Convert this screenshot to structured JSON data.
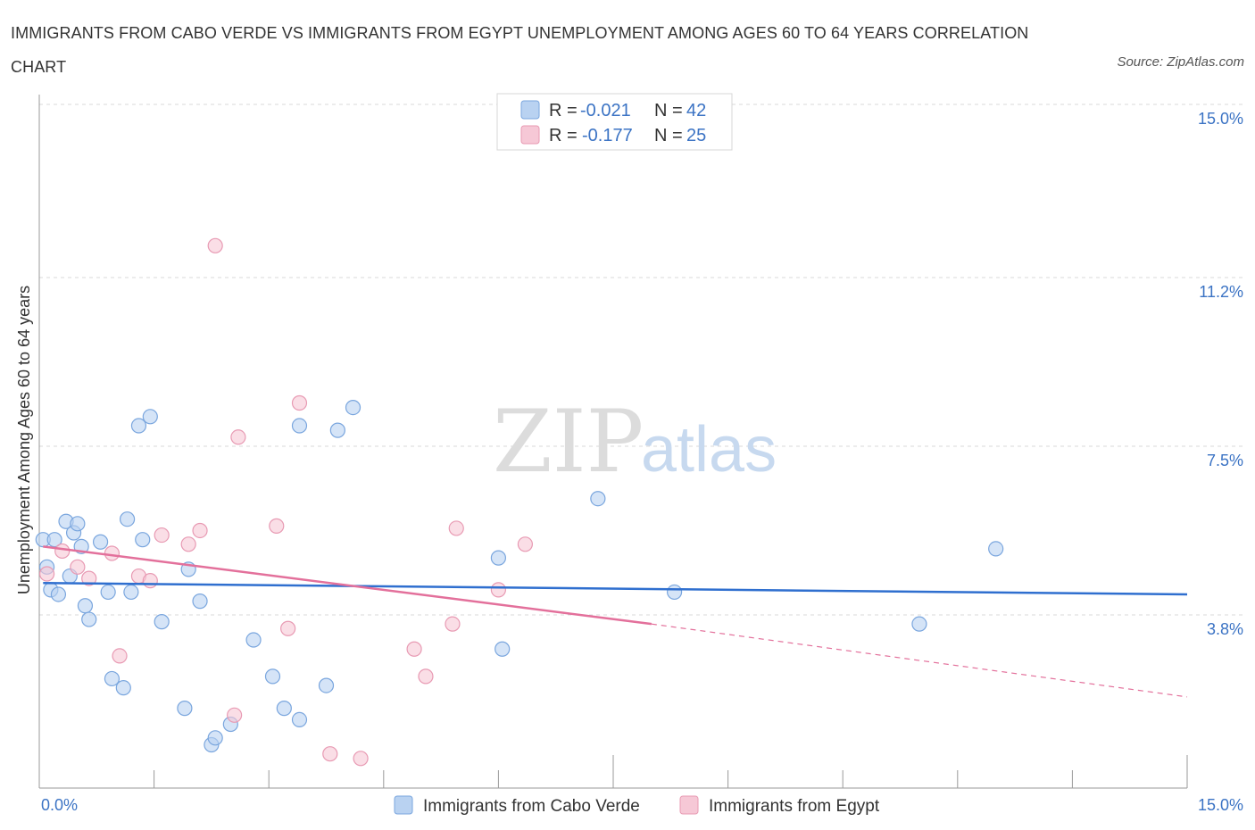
{
  "title": "IMMIGRANTS FROM CABO VERDE VS IMMIGRANTS FROM EGYPT UNEMPLOYMENT AMONG AGES 60 TO 64 YEARS CORRELATION CHART",
  "source": "Source: ZipAtlas.com",
  "watermark": {
    "zip": "ZIP",
    "atlas": "atlas"
  },
  "colors": {
    "blue_fill": "#b9d2f1",
    "blue_stroke": "#7aa6de",
    "blue_line": "#2f6fcf",
    "pink_fill": "#f6c8d6",
    "pink_stroke": "#e89ab3",
    "pink_line": "#e3709b",
    "grid": "#d8d8d8",
    "axis_text": "#3b73c4"
  },
  "legend": {
    "rows": [
      {
        "r_label": "R =",
        "r_value": "-0.021",
        "n_label": "N =",
        "n_value": "42"
      },
      {
        "r_label": "R =",
        "r_value": "-0.177",
        "n_label": "N =",
        "n_value": "25"
      }
    ]
  },
  "chart_data": {
    "type": "scatter",
    "xlabel": "",
    "ylabel": "Unemployment Among Ages 60 to 64 years",
    "xlim": [
      0,
      15
    ],
    "ylim": [
      0,
      15
    ],
    "x_tick_labels": [
      "0.0%",
      "15.0%"
    ],
    "y_ticks": [
      {
        "value": 3.8,
        "label": "3.8%"
      },
      {
        "value": 7.5,
        "label": "7.5%"
      },
      {
        "value": 11.2,
        "label": "11.2%"
      },
      {
        "value": 15.0,
        "label": "15.0%"
      }
    ],
    "series": [
      {
        "name": "Immigrants from Cabo Verde",
        "color": "blue",
        "points": [
          [
            0.05,
            5.45
          ],
          [
            0.1,
            4.85
          ],
          [
            0.15,
            4.35
          ],
          [
            0.2,
            5.45
          ],
          [
            0.25,
            4.25
          ],
          [
            0.35,
            5.85
          ],
          [
            0.4,
            4.65
          ],
          [
            0.45,
            5.6
          ],
          [
            0.5,
            5.8
          ],
          [
            0.55,
            5.3
          ],
          [
            0.6,
            4.0
          ],
          [
            0.65,
            3.7
          ],
          [
            0.8,
            5.4
          ],
          [
            0.9,
            4.3
          ],
          [
            0.95,
            2.4
          ],
          [
            1.1,
            2.2
          ],
          [
            1.15,
            5.9
          ],
          [
            1.2,
            4.3
          ],
          [
            1.3,
            7.95
          ],
          [
            1.35,
            5.45
          ],
          [
            1.45,
            8.15
          ],
          [
            1.6,
            3.65
          ],
          [
            1.9,
            1.75
          ],
          [
            1.95,
            4.8
          ],
          [
            2.1,
            4.1
          ],
          [
            2.25,
            0.95
          ],
          [
            2.3,
            1.1
          ],
          [
            2.5,
            1.4
          ],
          [
            2.8,
            3.25
          ],
          [
            3.05,
            2.45
          ],
          [
            3.2,
            1.75
          ],
          [
            3.4,
            7.95
          ],
          [
            3.4,
            1.5
          ],
          [
            3.75,
            2.25
          ],
          [
            3.9,
            7.85
          ],
          [
            4.1,
            8.35
          ],
          [
            6.0,
            5.05
          ],
          [
            6.05,
            3.05
          ],
          [
            7.3,
            6.35
          ],
          [
            8.3,
            4.3
          ],
          [
            11.5,
            3.6
          ],
          [
            12.5,
            5.25
          ]
        ],
        "trend": {
          "x": [
            0.05,
            15.0
          ],
          "y": [
            4.5,
            4.25
          ]
        }
      },
      {
        "name": "Immigrants from Egypt",
        "color": "pink",
        "points": [
          [
            0.1,
            4.7
          ],
          [
            0.3,
            5.2
          ],
          [
            0.5,
            4.85
          ],
          [
            0.65,
            4.6
          ],
          [
            0.95,
            5.15
          ],
          [
            1.05,
            2.9
          ],
          [
            1.3,
            4.65
          ],
          [
            1.45,
            4.55
          ],
          [
            1.6,
            5.55
          ],
          [
            1.95,
            5.35
          ],
          [
            2.1,
            5.65
          ],
          [
            2.3,
            11.9
          ],
          [
            2.55,
            1.6
          ],
          [
            2.6,
            7.7
          ],
          [
            3.1,
            5.75
          ],
          [
            3.25,
            3.5
          ],
          [
            3.4,
            8.45
          ],
          [
            3.8,
            0.75
          ],
          [
            4.2,
            0.65
          ],
          [
            4.9,
            3.05
          ],
          [
            5.05,
            2.45
          ],
          [
            5.4,
            3.6
          ],
          [
            5.45,
            5.7
          ],
          [
            6.0,
            4.35
          ],
          [
            6.35,
            5.35
          ]
        ],
        "trend": {
          "x": [
            0.05,
            8.0
          ],
          "y": [
            5.3,
            3.6
          ]
        },
        "trend_dashed": {
          "x": [
            8.0,
            15.0
          ],
          "y": [
            3.6,
            2.0
          ]
        }
      }
    ]
  }
}
